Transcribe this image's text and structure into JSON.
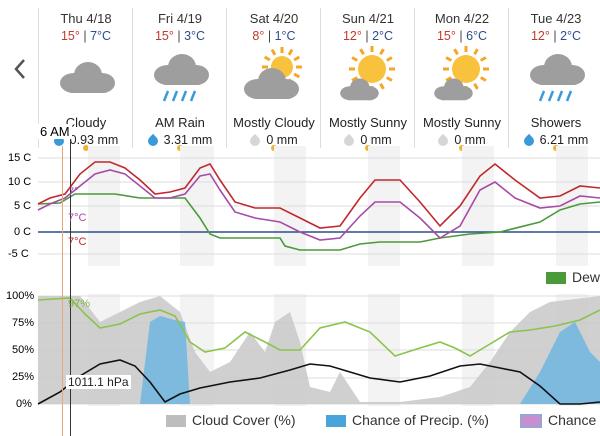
{
  "nav": {
    "prev_icon": "chevron-left-icon"
  },
  "days": [
    {
      "date": "Thu 4/18",
      "hi": "15°",
      "lo": "7°C",
      "condition": "Cloudy",
      "precip": "0.93 mm",
      "icon": "cloudy-icon",
      "drop": "blue"
    },
    {
      "date": "Fri 4/19",
      "hi": "15°",
      "lo": "3°C",
      "condition": "AM Rain",
      "precip": "3.31 mm",
      "icon": "rain-cloud-icon",
      "drop": "blue"
    },
    {
      "date": "Sat 4/20",
      "hi": "8°",
      "lo": "1°C",
      "condition": "Mostly Cloudy",
      "precip": "0 mm",
      "icon": "mostly-cloudy-icon",
      "drop": "gray"
    },
    {
      "date": "Sun 4/21",
      "hi": "12°",
      "lo": "2°C",
      "condition": "Mostly Sunny",
      "precip": "0 mm",
      "icon": "mostly-sunny-icon",
      "drop": "gray"
    },
    {
      "date": "Mon 4/22",
      "hi": "15°",
      "lo": "6°C",
      "condition": "Mostly Sunny",
      "precip": "0 mm",
      "icon": "mostly-sunny-icon",
      "drop": "gray"
    },
    {
      "date": "Tue 4/23",
      "hi": "12°",
      "lo": "2°C",
      "condition": "Showers",
      "precip": "6.21 mm",
      "icon": "showers-icon",
      "drop": "blue"
    }
  ],
  "time_marker": "6 AM",
  "temp_chart": {
    "y_ticks": [
      "15 C",
      "10 C",
      "5 C",
      "0 C",
      "-5 C"
    ],
    "current_labels": {
      "temp1": "7°C",
      "temp2": "7°C",
      "temp_top": "7°"
    }
  },
  "humidity_chart": {
    "y_ticks": [
      "100%",
      "75%",
      "50%",
      "25%",
      "0%"
    ],
    "current_humidity": "97%",
    "pressure": "1011.1 hPa"
  },
  "legend": {
    "dew": "Dew",
    "cloud_cover": "Cloud Cover (%)",
    "chance_precip": "Chance of Precip. (%)",
    "chance_other": "Chance"
  },
  "colors": {
    "temp": "#c0282d",
    "feels": "#a64ca6",
    "dew": "#4a9a3a",
    "cloud": "#c8c8c8",
    "precip": "#6fb6e0",
    "pressure": "#111111",
    "humidity": "#8bc34a"
  }
}
